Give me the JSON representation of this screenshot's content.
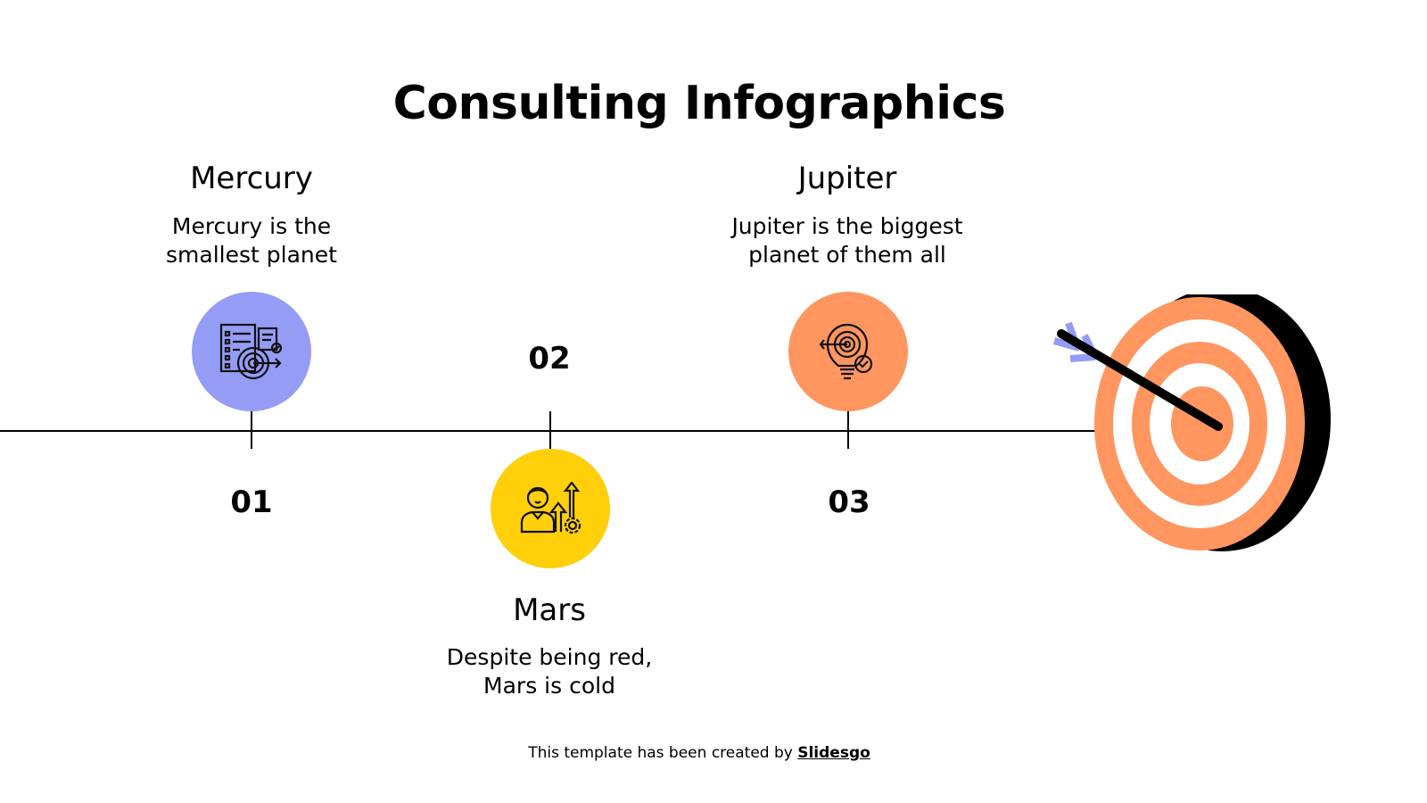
{
  "title": "Consulting Infographics",
  "steps": [
    {
      "number": "01",
      "heading": "Mercury",
      "description_line1": "Mercury is the",
      "description_line2": "smallest planet",
      "color": "#959CF5",
      "icon": "goal-checklist-icon"
    },
    {
      "number": "02",
      "heading": "Mars",
      "description_line1": "Despite being red,",
      "description_line2": "Mars is cold",
      "color": "#FFCF0A",
      "icon": "consultant-growth-icon"
    },
    {
      "number": "03",
      "heading": "Jupiter",
      "description_line1": "Jupiter is the biggest",
      "description_line2": "planet of them all",
      "color": "#FF965F",
      "icon": "idea-target-bulb-icon"
    }
  ],
  "target": {
    "ring_color": "#FF965F",
    "shadow_color": "#000000",
    "fletching_color": "#959CF5",
    "icon": "target-arrow-icon"
  },
  "footer": {
    "text": "This template has been created by ",
    "link": "Slidesgo"
  }
}
